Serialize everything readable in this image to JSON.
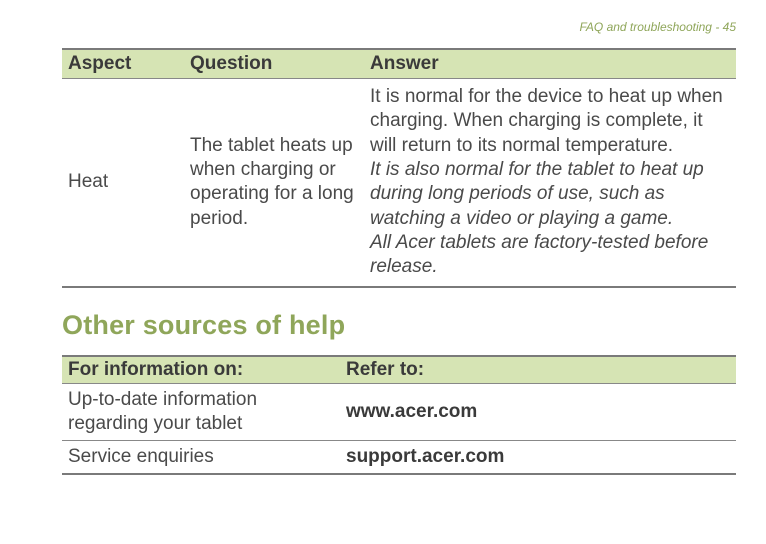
{
  "page": {
    "header": "FAQ and troubleshooting - 45"
  },
  "faq_table": {
    "headers": [
      "Aspect",
      "Question",
      "Answer"
    ],
    "row": {
      "aspect": "Heat",
      "question": "The tablet heats up when charging or operating for a long period.",
      "answer_p1": "It is normal for the device to heat up when charging. When charging is complete, it will return to its normal temperature.",
      "answer_p2": "It is also normal for the tablet to heat up during long periods of use, such as watching a video or playing a game.",
      "answer_p3": "All Acer tablets are factory-tested before release."
    }
  },
  "section_heading": "Other sources of help",
  "help_table": {
    "headers": [
      "For information on:",
      "Refer to:"
    ],
    "rows": [
      {
        "info": "Up-to-date information regarding your tablet",
        "refer": "www.acer.com"
      },
      {
        "info": "Service enquiries",
        "refer": "support.acer.com"
      }
    ]
  },
  "colors": {
    "header_bg": "#d6e4b4",
    "accent": "#8fa65a",
    "text": "#4a4a4a",
    "border": "#7a7a7a"
  }
}
